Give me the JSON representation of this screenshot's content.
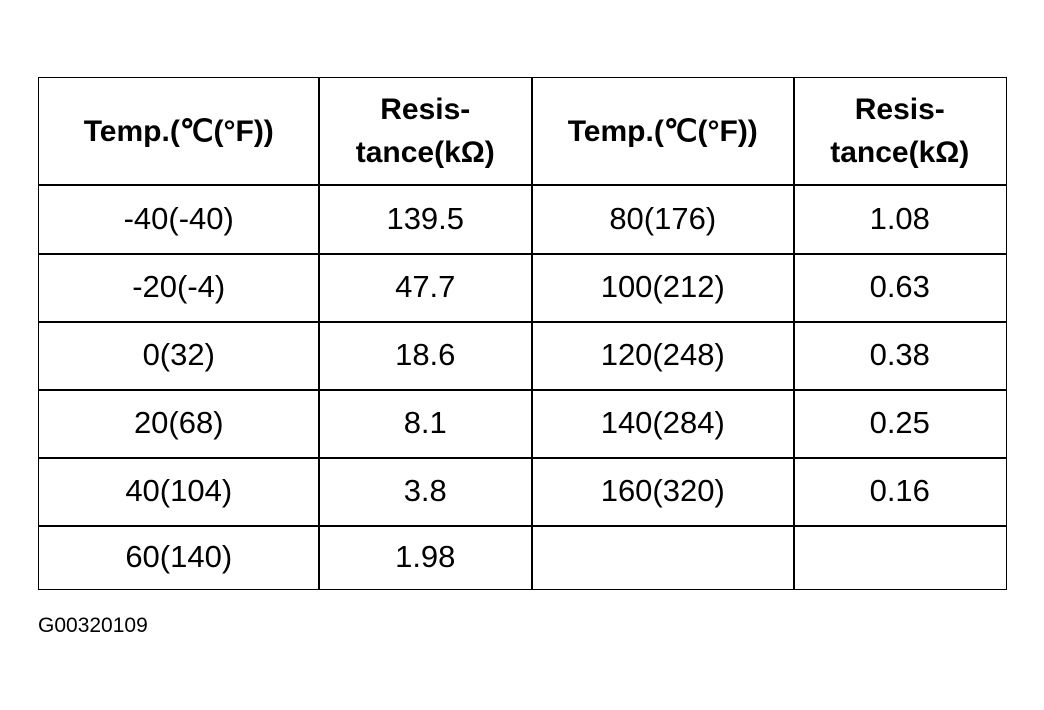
{
  "table": {
    "headers": [
      [
        "Temp.(℃(°F))"
      ],
      [
        "Resis-",
        "tance(kΩ)"
      ],
      [
        "Temp.(℃(°F))"
      ],
      [
        "Resis-",
        "tance(kΩ)"
      ]
    ],
    "rows": [
      [
        "-40(-40)",
        "139.5",
        "80(176)",
        "1.08"
      ],
      [
        "-20(-4)",
        "47.7",
        "100(212)",
        "0.63"
      ],
      [
        "0(32)",
        "18.6",
        "120(248)",
        "0.38"
      ],
      [
        "20(68)",
        "8.1",
        "140(284)",
        "0.25"
      ],
      [
        "40(104)",
        "3.8",
        "160(320)",
        "0.16"
      ],
      [
        "60(140)",
        "1.98"
      ]
    ]
  },
  "figure_code": "G00320109"
}
